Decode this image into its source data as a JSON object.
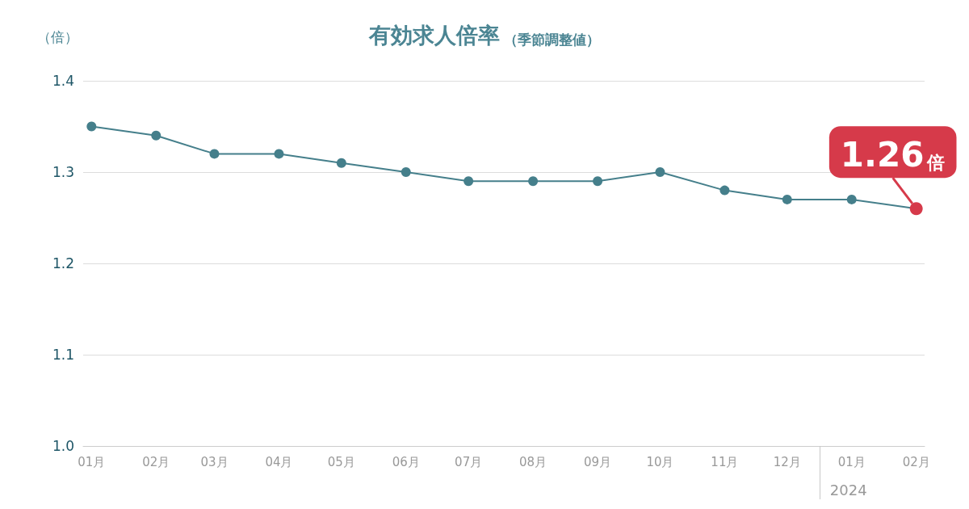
{
  "chart_data": {
    "type": "line",
    "title": "有効求人倍率",
    "subtitle": "（季節調整値）",
    "ylabel": "（倍）",
    "x": [
      "2023-01",
      "2023-02",
      "2023-03",
      "2023-04",
      "2023-05",
      "2023-06",
      "2023-07",
      "2023-08",
      "2023-09",
      "2023-10",
      "2023-11",
      "2023-12",
      "2024-01",
      "2024-02"
    ],
    "xlim": [
      "2022-12-28",
      "2024-02-05"
    ],
    "xticks": [
      {
        "value": "2023-01",
        "label": "01月"
      },
      {
        "value": "2023-02",
        "label": "02月"
      },
      {
        "value": "2023-03",
        "label": "03月"
      },
      {
        "value": "2023-04",
        "label": "04月"
      },
      {
        "value": "2023-05",
        "label": "05月"
      },
      {
        "value": "2023-06",
        "label": "06月"
      },
      {
        "value": "2023-07",
        "label": "07月"
      },
      {
        "value": "2023-08",
        "label": "08月"
      },
      {
        "value": "2023-09",
        "label": "09月"
      },
      {
        "value": "2023-10",
        "label": "10月"
      },
      {
        "value": "2023-11",
        "label": "11月"
      },
      {
        "value": "2023-12",
        "label": "12月"
      },
      {
        "value": "2024-01",
        "label": "01月"
      },
      {
        "value": "2024-02",
        "label": "02月"
      }
    ],
    "series": [
      {
        "color": "#457f8b",
        "colors": [
          "#457f8b",
          "#457f8b",
          "#457f8b",
          "#457f8b",
          "#457f8b",
          "#457f8b",
          "#457f8b",
          "#457f8b",
          "#457f8b",
          "#457f8b",
          "#457f8b",
          "#457f8b",
          "#457f8b",
          "#d63a4a"
        ],
        "values": [
          1.35,
          1.34,
          1.32,
          1.32,
          1.31,
          1.3,
          1.29,
          1.29,
          1.29,
          1.3,
          1.28,
          1.27,
          1.27,
          1.26
        ],
        "value_labels": [
          null,
          null,
          null,
          null,
          null,
          null,
          null,
          null,
          null,
          null,
          null,
          null,
          null,
          "1.26倍"
        ]
      }
    ],
    "ylim": [
      1.0,
      1.4
    ],
    "yticks": [
      {
        "value": 1.0,
        "label": "1.0"
      },
      1.1,
      1.2,
      1.3,
      1.4
    ],
    "grid": "y",
    "marker": "circle",
    "line_style": "solid",
    "annotations": [
      "2024"
    ]
  }
}
